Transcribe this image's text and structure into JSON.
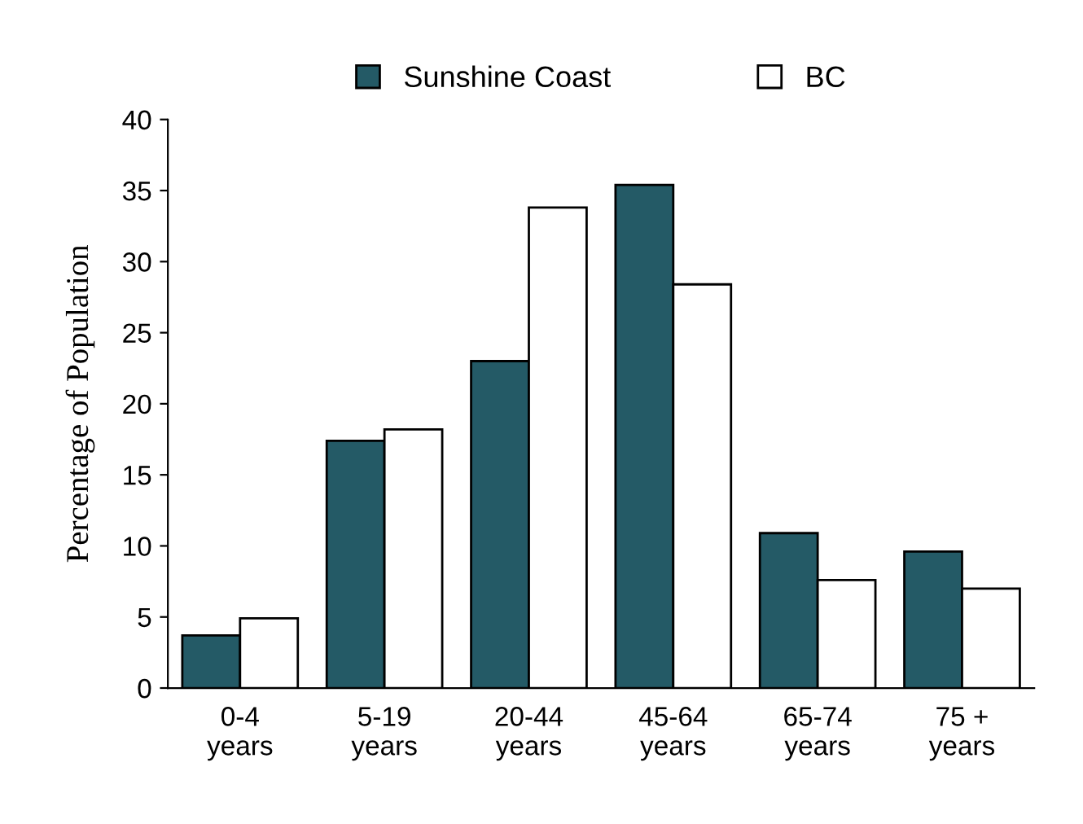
{
  "chart_data": {
    "type": "bar",
    "ylabel": "Percentage of Population",
    "categories": [
      "0-4\nyears",
      "5-19\nyears",
      "20-44\nyears",
      "45-64\nyears",
      "65-74\nyears",
      "75 +\nyears"
    ],
    "series": [
      {
        "name": "Sunshine Coast",
        "color": "#245a66",
        "values": [
          3.7,
          17.4,
          23.0,
          35.4,
          10.9,
          9.6
        ]
      },
      {
        "name": "BC",
        "color": "#ffffff",
        "values": [
          4.9,
          18.2,
          33.8,
          28.4,
          7.6,
          7.0
        ]
      }
    ],
    "ylim": [
      0,
      40
    ],
    "yticks": [
      0,
      5,
      10,
      15,
      20,
      25,
      30,
      35,
      40
    ],
    "grid": false,
    "legend": "top"
  }
}
